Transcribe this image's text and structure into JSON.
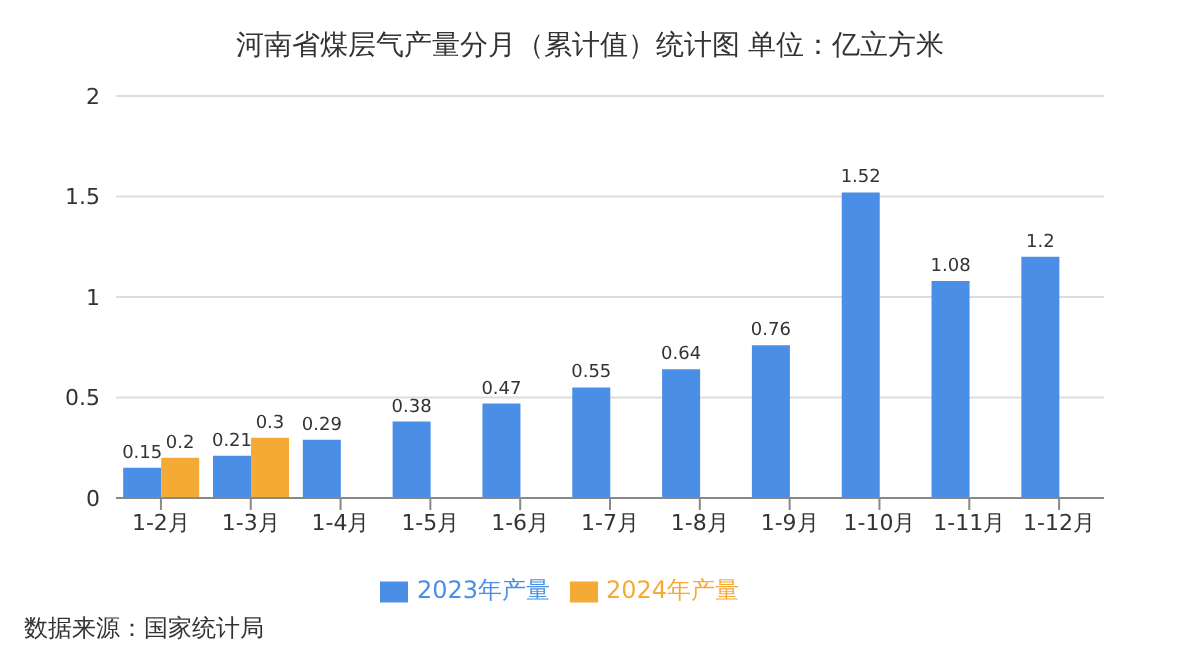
{
  "chart_data": {
    "type": "bar",
    "title": "河南省煤层气产量分月（累计值）统计图 单位：亿立方米",
    "categories": [
      "1-2月",
      "1-3月",
      "1-4月",
      "1-5月",
      "1-6月",
      "1-7月",
      "1-8月",
      "1-9月",
      "1-10月",
      "1-11月",
      "1-12月"
    ],
    "series": [
      {
        "name": "2023年产量",
        "color": "#4a8ee6",
        "values": [
          0.15,
          0.21,
          0.29,
          0.38,
          0.47,
          0.55,
          0.64,
          0.76,
          1.52,
          1.08,
          1.2
        ]
      },
      {
        "name": "2024年产量",
        "color": "#f5aa36",
        "values": [
          0.2,
          0.3,
          null,
          null,
          null,
          null,
          null,
          null,
          null,
          null,
          null
        ]
      }
    ],
    "ylim": [
      0,
      2
    ],
    "yticks": [
      0,
      0.5,
      1,
      1.5,
      2
    ],
    "grid": "y",
    "legend": "bottom",
    "data_labels": true,
    "annotations": [
      "数据来源：国家统计局"
    ]
  }
}
